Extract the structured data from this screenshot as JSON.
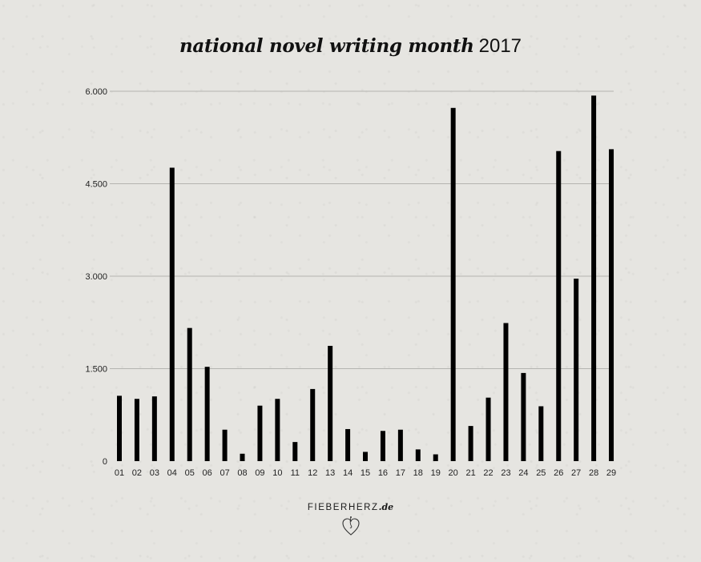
{
  "title": {
    "main": "national novel writing month",
    "year": "2017"
  },
  "watermark": {
    "brand": "FIEBERHERZ",
    "suffix": ".de",
    "icon": "heart-icon"
  },
  "colors": {
    "bar": "#000000",
    "grid": "#b4b4b0",
    "background": "#e6e5e1"
  },
  "chart_data": {
    "type": "bar",
    "title": "national novel writing month 2017",
    "xlabel": "",
    "ylabel": "",
    "ylim": [
      0,
      6000
    ],
    "yticks": [
      0,
      1500,
      3000,
      4500,
      6000
    ],
    "ytick_labels": [
      "0",
      "1.500",
      "3.000",
      "4.500",
      "6.000"
    ],
    "grid": "horizontal",
    "legend": "none",
    "categories": [
      "01",
      "02",
      "03",
      "04",
      "05",
      "06",
      "07",
      "08",
      "09",
      "10",
      "11",
      "12",
      "13",
      "14",
      "15",
      "16",
      "17",
      "18",
      "19",
      "20",
      "21",
      "22",
      "23",
      "24",
      "25",
      "26",
      "27",
      "28",
      "29"
    ],
    "values": [
      1060,
      1010,
      1050,
      4760,
      2160,
      1530,
      510,
      120,
      900,
      1010,
      310,
      1170,
      1870,
      520,
      150,
      490,
      510,
      190,
      110,
      5730,
      570,
      1030,
      2240,
      1430,
      890,
      5030,
      2960,
      5930,
      5060
    ]
  }
}
